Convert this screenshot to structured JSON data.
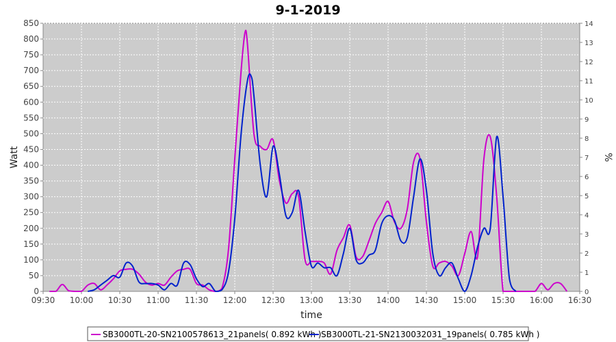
{
  "chart_data": {
    "type": "line",
    "title": "9-1-2019",
    "xlabel": "time",
    "ylabel": "Watt",
    "y2label": "%",
    "xlim": [
      "09:30",
      "16:30"
    ],
    "ylim": [
      0,
      850
    ],
    "y2lim": [
      0,
      14
    ],
    "x_ticks": [
      "09:30",
      "10:00",
      "10:30",
      "11:00",
      "11:30",
      "12:00",
      "12:30",
      "13:00",
      "13:30",
      "14:00",
      "14:30",
      "15:00",
      "15:30",
      "16:00",
      "16:30"
    ],
    "y_ticks": [
      0,
      50,
      100,
      150,
      200,
      250,
      300,
      350,
      400,
      450,
      500,
      550,
      600,
      650,
      700,
      750,
      800,
      850
    ],
    "y2_ticks": [
      0,
      1,
      2,
      3,
      4,
      5,
      6,
      7,
      8,
      9,
      10,
      11,
      12,
      13,
      14
    ],
    "grid": true,
    "legend_position": "bottom",
    "series": [
      {
        "name": "SB3000TL-20-SN2100578613_21panels( 0.892 kWh )",
        "color": "#cc00cc",
        "points": [
          [
            "09:35",
            0
          ],
          [
            "09:40",
            0
          ],
          [
            "09:45",
            22
          ],
          [
            "09:50",
            2
          ],
          [
            "09:55",
            0
          ],
          [
            "10:00",
            0
          ],
          [
            "10:05",
            20
          ],
          [
            "10:10",
            25
          ],
          [
            "10:15",
            5
          ],
          [
            "10:20",
            20
          ],
          [
            "10:25",
            40
          ],
          [
            "10:30",
            65
          ],
          [
            "10:35",
            70
          ],
          [
            "10:40",
            70
          ],
          [
            "10:45",
            55
          ],
          [
            "10:50",
            30
          ],
          [
            "10:55",
            20
          ],
          [
            "11:00",
            25
          ],
          [
            "11:05",
            20
          ],
          [
            "11:10",
            45
          ],
          [
            "11:15",
            65
          ],
          [
            "11:20",
            70
          ],
          [
            "11:25",
            70
          ],
          [
            "11:30",
            25
          ],
          [
            "11:35",
            20
          ],
          [
            "11:40",
            5
          ],
          [
            "11:45",
            0
          ],
          [
            "11:50",
            10
          ],
          [
            "11:55",
            130
          ],
          [
            "12:00",
            420
          ],
          [
            "12:05",
            700
          ],
          [
            "12:08",
            820
          ],
          [
            "12:10",
            780
          ],
          [
            "12:15",
            500
          ],
          [
            "12:20",
            460
          ],
          [
            "12:25",
            450
          ],
          [
            "12:30",
            480
          ],
          [
            "12:35",
            350
          ],
          [
            "12:40",
            280
          ],
          [
            "12:45",
            310
          ],
          [
            "12:50",
            300
          ],
          [
            "12:55",
            100
          ],
          [
            "13:00",
            95
          ],
          [
            "13:05",
            95
          ],
          [
            "13:10",
            90
          ],
          [
            "13:15",
            55
          ],
          [
            "13:20",
            130
          ],
          [
            "13:25",
            170
          ],
          [
            "13:30",
            210
          ],
          [
            "13:35",
            110
          ],
          [
            "13:40",
            110
          ],
          [
            "13:45",
            160
          ],
          [
            "13:50",
            215
          ],
          [
            "13:55",
            250
          ],
          [
            "14:00",
            285
          ],
          [
            "14:05",
            220
          ],
          [
            "14:10",
            200
          ],
          [
            "14:15",
            260
          ],
          [
            "14:20",
            410
          ],
          [
            "14:25",
            420
          ],
          [
            "14:30",
            220
          ],
          [
            "14:35",
            80
          ],
          [
            "14:40",
            90
          ],
          [
            "14:45",
            95
          ],
          [
            "14:50",
            80
          ],
          [
            "14:55",
            50
          ],
          [
            "15:00",
            120
          ],
          [
            "15:05",
            190
          ],
          [
            "15:10",
            110
          ],
          [
            "15:15",
            420
          ],
          [
            "15:20",
            490
          ],
          [
            "15:25",
            300
          ],
          [
            "15:30",
            0
          ],
          [
            "15:35",
            0
          ],
          [
            "15:40",
            0
          ],
          [
            "15:45",
            0
          ],
          [
            "15:50",
            0
          ],
          [
            "15:55",
            0
          ],
          [
            "16:00",
            25
          ],
          [
            "16:05",
            5
          ],
          [
            "16:10",
            25
          ],
          [
            "16:15",
            25
          ],
          [
            "16:20",
            0
          ]
        ]
      },
      {
        "name": "SB3000TL-21-SN2130032031_19panels( 0.785 kWh )",
        "color": "#0022cc",
        "points": [
          [
            "10:05",
            0
          ],
          [
            "10:10",
            5
          ],
          [
            "10:15",
            20
          ],
          [
            "10:20",
            35
          ],
          [
            "10:25",
            50
          ],
          [
            "10:30",
            45
          ],
          [
            "10:35",
            90
          ],
          [
            "10:40",
            80
          ],
          [
            "10:45",
            30
          ],
          [
            "10:50",
            25
          ],
          [
            "10:55",
            25
          ],
          [
            "11:00",
            20
          ],
          [
            "11:05",
            5
          ],
          [
            "11:10",
            25
          ],
          [
            "11:15",
            20
          ],
          [
            "11:20",
            90
          ],
          [
            "11:25",
            85
          ],
          [
            "11:30",
            40
          ],
          [
            "11:35",
            15
          ],
          [
            "11:40",
            25
          ],
          [
            "11:45",
            0
          ],
          [
            "11:50",
            5
          ],
          [
            "11:55",
            60
          ],
          [
            "12:00",
            230
          ],
          [
            "12:05",
            500
          ],
          [
            "12:10",
            670
          ],
          [
            "12:13",
            680
          ],
          [
            "12:15",
            620
          ],
          [
            "12:20",
            400
          ],
          [
            "12:25",
            300
          ],
          [
            "12:30",
            460
          ],
          [
            "12:35",
            370
          ],
          [
            "12:40",
            240
          ],
          [
            "12:45",
            250
          ],
          [
            "12:50",
            320
          ],
          [
            "12:55",
            190
          ],
          [
            "13:00",
            80
          ],
          [
            "13:05",
            90
          ],
          [
            "13:10",
            75
          ],
          [
            "13:15",
            75
          ],
          [
            "13:20",
            50
          ],
          [
            "13:25",
            120
          ],
          [
            "13:30",
            200
          ],
          [
            "13:35",
            100
          ],
          [
            "13:40",
            90
          ],
          [
            "13:45",
            115
          ],
          [
            "13:50",
            130
          ],
          [
            "13:55",
            215
          ],
          [
            "14:00",
            240
          ],
          [
            "14:05",
            225
          ],
          [
            "14:10",
            160
          ],
          [
            "14:15",
            170
          ],
          [
            "14:20",
            300
          ],
          [
            "14:25",
            420
          ],
          [
            "14:30",
            320
          ],
          [
            "14:35",
            120
          ],
          [
            "14:40",
            50
          ],
          [
            "14:45",
            75
          ],
          [
            "14:50",
            90
          ],
          [
            "14:55",
            40
          ],
          [
            "15:00",
            0
          ],
          [
            "15:05",
            50
          ],
          [
            "15:10",
            140
          ],
          [
            "15:15",
            200
          ],
          [
            "15:20",
            200
          ],
          [
            "15:25",
            490
          ],
          [
            "15:30",
            300
          ],
          [
            "15:35",
            40
          ],
          [
            "15:40",
            0
          ]
        ]
      }
    ]
  }
}
